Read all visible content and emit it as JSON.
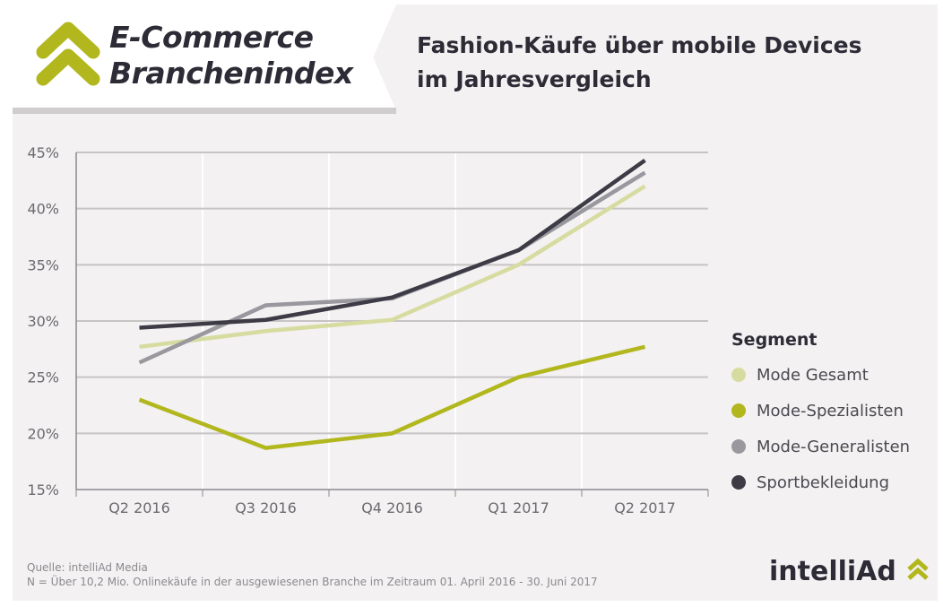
{
  "header": {
    "logo_line1": "E-Commerce",
    "logo_line2": "Branchenindex",
    "title_line1": "Fashion-Käufe über mobile Devices",
    "title_line2": "im Jahresvergleich"
  },
  "chart_data": {
    "type": "line",
    "categories": [
      "Q2 2016",
      "Q3 2016",
      "Q4 2016",
      "Q1 2017",
      "Q2 2017"
    ],
    "ylim": [
      15,
      45
    ],
    "yticks": [
      15,
      20,
      25,
      30,
      35,
      40,
      45
    ],
    "ytick_labels": [
      "15%",
      "20%",
      "25%",
      "30%",
      "35%",
      "40%",
      "45%"
    ],
    "grid": true,
    "legend_title": "Segment",
    "legend_placement": "right",
    "series": [
      {
        "name": "Mode Gesamt",
        "color": "#d6dca0",
        "values": [
          27.7,
          29.1,
          30.1,
          35.0,
          42.0
        ]
      },
      {
        "name": "Mode-Spezialisten",
        "color": "#b1b71c",
        "values": [
          23.0,
          18.7,
          20.0,
          25.0,
          27.7
        ]
      },
      {
        "name": "Mode-Generalisten",
        "color": "#98989e",
        "values": [
          26.3,
          31.4,
          32.0,
          36.3,
          43.2
        ]
      },
      {
        "name": "Sportbekleidung",
        "color": "#3d3c46",
        "values": [
          29.4,
          30.1,
          32.1,
          36.3,
          44.3
        ]
      }
    ]
  },
  "footer": {
    "source": "Quelle: intelliAd Media",
    "note": "N = Über 10,2 Mio. Onlinekäufe in der ausgewiesenen Branche im Zeitraum 01. April 2016 - 30. Juni 2017",
    "brand": "intelliAd"
  },
  "colors": {
    "accent": "#b1b71c",
    "text": "#2d2c36"
  }
}
